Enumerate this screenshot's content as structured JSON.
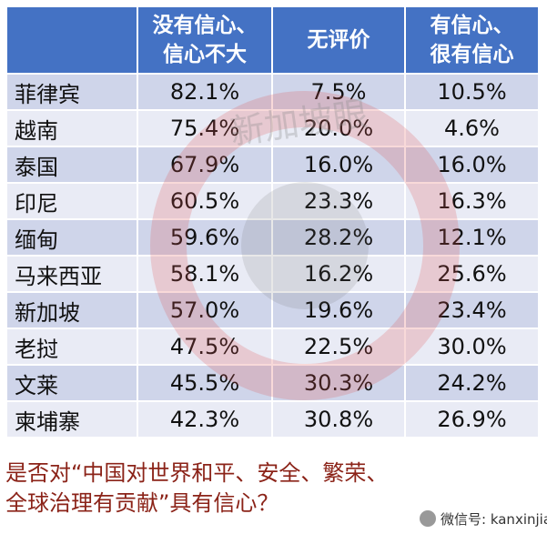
{
  "table": {
    "header": [
      [],
      [
        "没有信心、",
        "信心不大"
      ],
      [
        "无评价"
      ],
      [
        "有信心、",
        "很有信心"
      ]
    ],
    "rows": [
      [
        "菲律宾",
        "82.1%",
        "7.5%",
        "10.5%"
      ],
      [
        "越南",
        "75.4%",
        "20.0%",
        "4.6%"
      ],
      [
        "泰国",
        "67.9%",
        "16.0%",
        "16.0%"
      ],
      [
        "印尼",
        "60.5%",
        "23.3%",
        "16.3%"
      ],
      [
        "缅甸",
        "59.6%",
        "28.2%",
        "12.1%"
      ],
      [
        "马来西亚",
        "58.1%",
        "16.2%",
        "25.6%"
      ],
      [
        "新加坡",
        "57.0%",
        "19.6%",
        "23.4%"
      ],
      [
        "老挝",
        "47.5%",
        "22.5%",
        "30.0%"
      ],
      [
        "文莱",
        "45.5%",
        "30.3%",
        "24.2%"
      ],
      [
        "柬埔寨",
        "42.3%",
        "30.8%",
        "26.9%"
      ]
    ]
  },
  "caption": [
    "是否对“中国对世界和平、安全、繁荣、",
    "全球治理有贡献”具有信心？"
  ],
  "watermark": "新加坡眼",
  "wechat": "微信号: kanxinjiapo"
}
